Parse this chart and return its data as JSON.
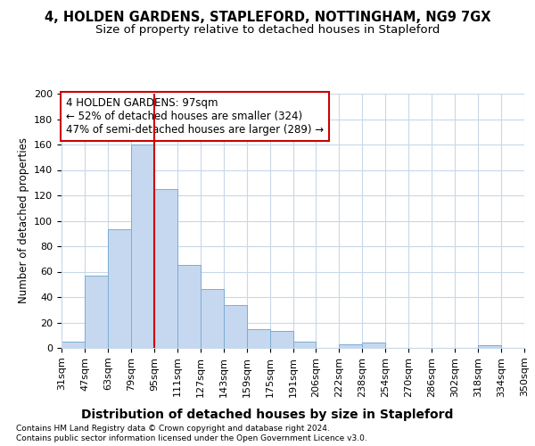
{
  "title": "4, HOLDEN GARDENS, STAPLEFORD, NOTTINGHAM, NG9 7GX",
  "subtitle": "Size of property relative to detached houses in Stapleford",
  "xlabel": "Distribution of detached houses by size in Stapleford",
  "ylabel": "Number of detached properties",
  "bar_values": [
    5,
    57,
    93,
    160,
    125,
    65,
    46,
    34,
    15,
    13,
    5,
    0,
    3,
    4,
    0,
    0,
    0,
    0,
    2,
    0
  ],
  "bin_labels": [
    "31sqm",
    "47sqm",
    "63sqm",
    "79sqm",
    "95sqm",
    "111sqm",
    "127sqm",
    "143sqm",
    "159sqm",
    "175sqm",
    "191sqm",
    "206sqm",
    "222sqm",
    "238sqm",
    "254sqm",
    "270sqm",
    "286sqm",
    "302sqm",
    "318sqm",
    "334sqm",
    "350sqm"
  ],
  "bar_color": "#C5D8F0",
  "bar_edge_color": "#7AADD4",
  "vline_x": 95,
  "vline_color": "#cc0000",
  "annotation_line1": "4 HOLDEN GARDENS: 97sqm",
  "annotation_line2": "← 52% of detached houses are smaller (324)",
  "annotation_line3": "47% of semi-detached houses are larger (289) →",
  "annotation_box_color": "#ffffff",
  "annotation_box_edge": "#cc0000",
  "ylim": [
    0,
    200
  ],
  "yticks": [
    0,
    20,
    40,
    60,
    80,
    100,
    120,
    140,
    160,
    180,
    200
  ],
  "grid_color": "#c8d8e8",
  "background_color": "#ffffff",
  "footer_line1": "Contains HM Land Registry data © Crown copyright and database right 2024.",
  "footer_line2": "Contains public sector information licensed under the Open Government Licence v3.0.",
  "title_fontsize": 10.5,
  "subtitle_fontsize": 9.5,
  "xlabel_fontsize": 10,
  "ylabel_fontsize": 8.5,
  "tick_fontsize": 8,
  "footer_fontsize": 6.5,
  "annotation_fontsize": 8.5
}
